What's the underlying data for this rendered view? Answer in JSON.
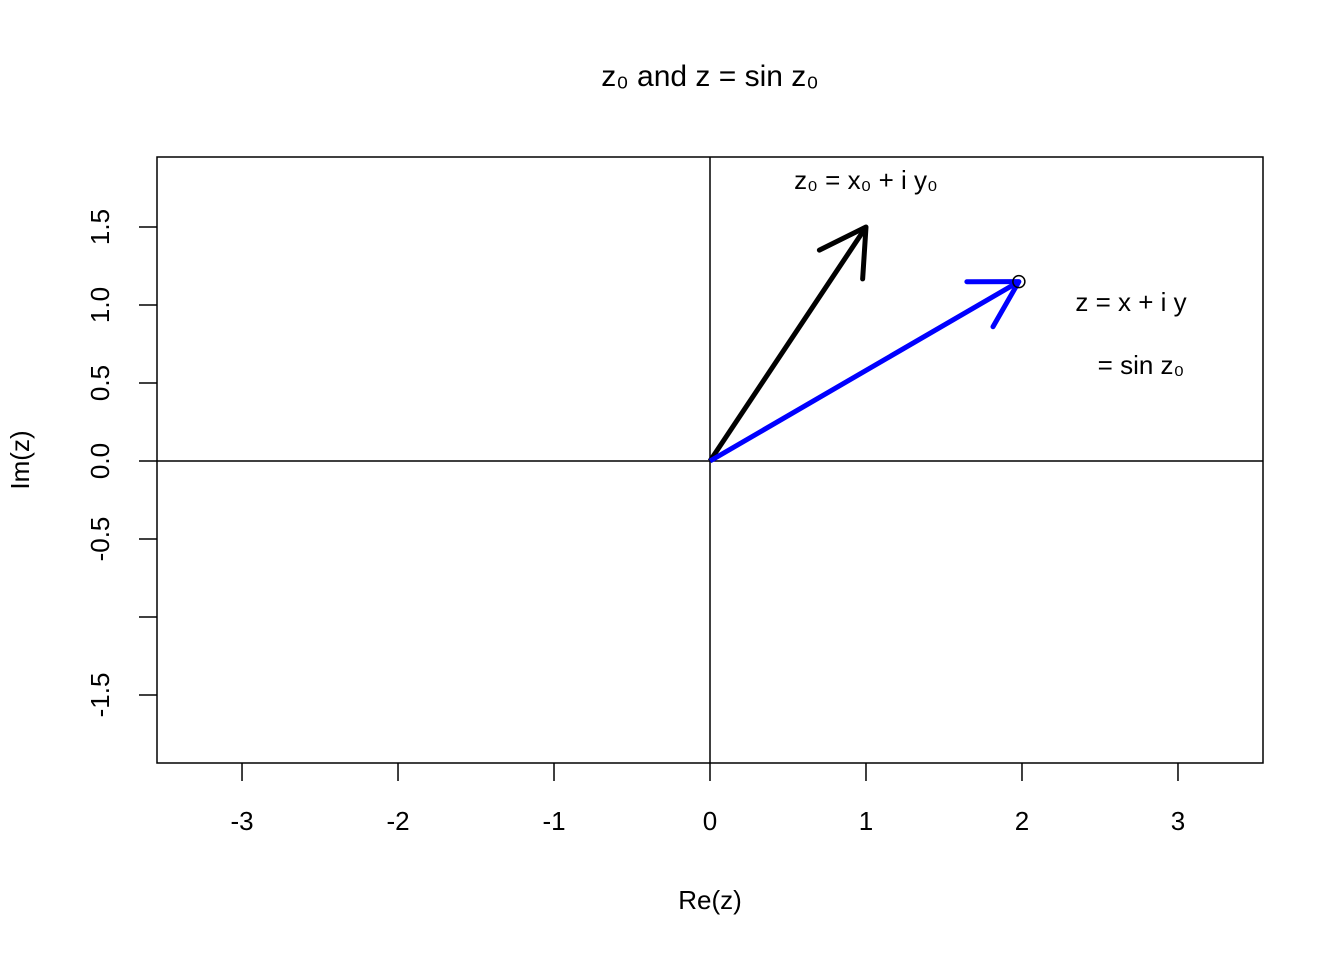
{
  "chart_data": {
    "type": "vector",
    "title": "z₀ and z = sin z₀",
    "x_label": "Re(z)",
    "y_label": "Im(z)",
    "xlim": [
      -3.545,
      3.545
    ],
    "ylim": [
      -1.936,
      1.949
    ],
    "xticks": [
      -3,
      -2,
      -1,
      0,
      1,
      2,
      3
    ],
    "yticks": [
      {
        "value": -1.5,
        "label": "-1.5"
      },
      {
        "value": -1,
        "label": null
      },
      {
        "value": -0.5,
        "label": "-0.5"
      },
      {
        "value": 0,
        "label": "0.0"
      },
      {
        "value": 0.5,
        "label": "0.5"
      },
      {
        "value": 1,
        "label": "1.0"
      },
      {
        "value": 1.5,
        "label": "1.5"
      }
    ],
    "vectors": [
      {
        "color": "#000000",
        "x": 1,
        "y": 1.5
      },
      {
        "color": "#0000ff",
        "x": 1.98,
        "y": 1.15
      }
    ],
    "annotations": [
      "z₀ = x₀ + i y₀",
      "z = x + i y",
      "= sin z₀"
    ]
  }
}
